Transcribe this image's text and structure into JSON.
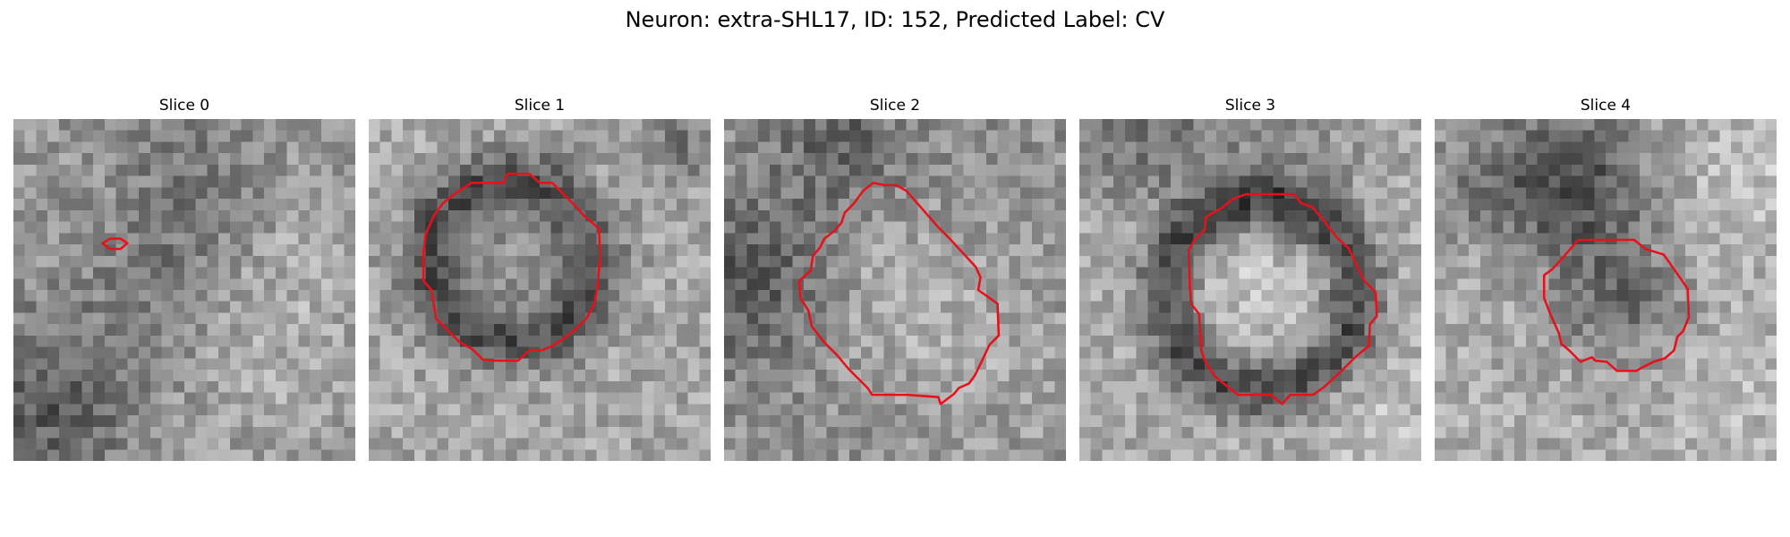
{
  "figure": {
    "title": "Neuron: extra-SHL17, ID: 152, Predicted Label: CV",
    "contour_color": "#e8101a"
  },
  "slices": [
    {
      "title": "Slice 0"
    },
    {
      "title": "Slice 1"
    },
    {
      "title": "Slice 2"
    },
    {
      "title": "Slice 3"
    },
    {
      "title": "Slice 4"
    }
  ]
}
